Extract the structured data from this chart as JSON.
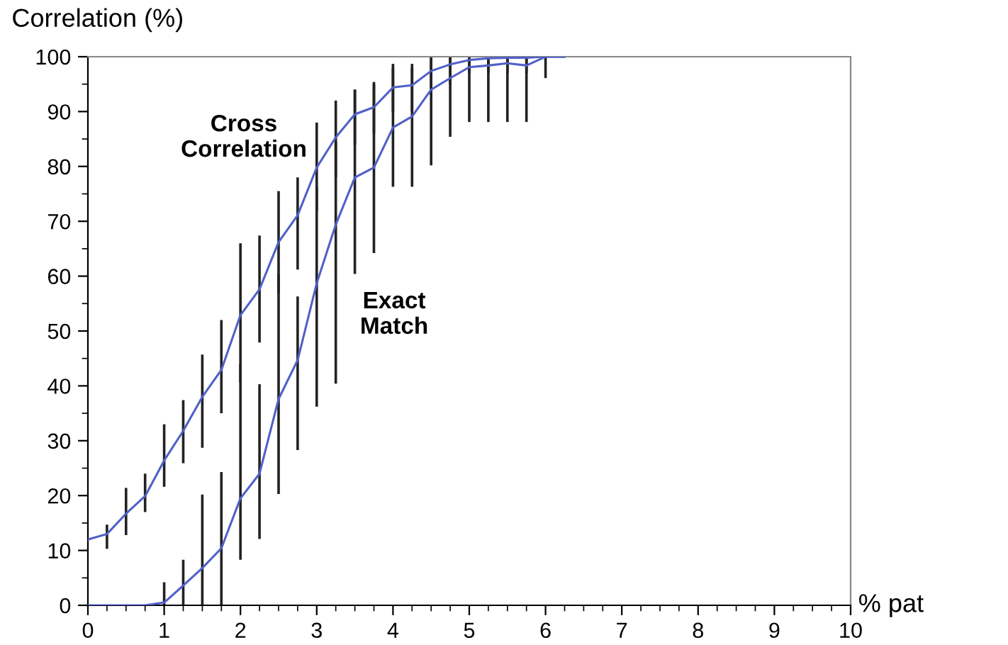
{
  "chart_data": {
    "type": "line",
    "xlabel": "% pat",
    "ylabel": "Correlation (%)",
    "xlim": [
      0,
      10
    ],
    "xticks": [
      0,
      1,
      2,
      3,
      4,
      5,
      6,
      7,
      8,
      9,
      10
    ],
    "ylim": [
      0,
      100
    ],
    "yticks": [
      0,
      10,
      20,
      30,
      40,
      50,
      60,
      70,
      80,
      90,
      100
    ],
    "grid": false,
    "marker": "none",
    "line_style": "solid",
    "series": [
      {
        "name": "Cross\nCorrelation",
        "color": "#5060c8",
        "x": [
          0,
          0.25,
          0.5,
          0.75,
          1,
          1.25,
          1.5,
          1.75,
          2,
          2.25,
          2.5,
          2.75,
          3,
          3.25,
          3.5,
          3.75,
          4,
          4.25,
          4.5,
          4.75,
          5,
          5.25,
          5.5,
          5.75,
          6,
          6.25
        ],
        "values": [
          12,
          13,
          16.7,
          19.9,
          26.4,
          31.8,
          38,
          42.9,
          52.9,
          57.6,
          66.2,
          71.1,
          79.8,
          85.3,
          89.5,
          90.8,
          94.4,
          94.8,
          97.4,
          98.6,
          99.4,
          99.7,
          99.8,
          99.8,
          100,
          100
        ],
        "errors": [
          null,
          [
            10.3,
            14.7
          ],
          [
            12.8,
            21.4
          ],
          [
            17,
            24
          ],
          [
            21.6,
            33
          ],
          [
            25.9,
            37.4
          ],
          [
            28.7,
            45.7
          ],
          [
            35,
            52
          ],
          [
            40.6,
            66
          ],
          [
            47.9,
            67.4
          ],
          [
            56.9,
            75.5
          ],
          [
            61.2,
            78
          ],
          [
            72,
            88
          ],
          [
            78,
            92
          ],
          [
            84,
            94
          ],
          [
            86,
            95.4
          ],
          [
            90,
            98.7
          ],
          [
            90,
            98.7
          ],
          [
            93,
            100
          ],
          [
            95,
            100
          ],
          [
            97,
            100
          ],
          [
            97,
            100
          ],
          [
            97,
            100
          ],
          [
            97,
            100
          ],
          [
            100,
            100
          ],
          null
        ]
      },
      {
        "name": "Exact\nMatch",
        "color": "#5060c8",
        "x": [
          0,
          0.25,
          0.5,
          0.75,
          1,
          1.25,
          1.5,
          1.75,
          2,
          2.25,
          2.5,
          2.75,
          3,
          3.25,
          3.5,
          3.75,
          4,
          4.25,
          4.5,
          4.75,
          5,
          5.25,
          5.5,
          5.75,
          6,
          6.25
        ],
        "values": [
          0,
          0,
          0,
          0,
          0.5,
          3.6,
          6.8,
          10.4,
          19.5,
          24,
          37.6,
          44.7,
          58.7,
          69.4,
          78,
          79.8,
          87.1,
          89.1,
          94,
          96.1,
          98.1,
          98.4,
          98.8,
          98.4,
          100,
          100
        ],
        "errors": [
          null,
          null,
          null,
          null,
          [
            0,
            4.2
          ],
          [
            0,
            8.3
          ],
          [
            0,
            20.2
          ],
          [
            0,
            24.3
          ],
          [
            8.3,
            44
          ],
          [
            12.1,
            40.3
          ],
          [
            20.3,
            60.4
          ],
          [
            28.3,
            56.3
          ],
          [
            36.2,
            76.3
          ],
          [
            40.4,
            84.5
          ],
          [
            60.4,
            94
          ],
          [
            64.2,
            95
          ],
          [
            76.3,
            98
          ],
          [
            76.3,
            98
          ],
          [
            80.2,
            100
          ],
          [
            85.4,
            100
          ],
          [
            88.1,
            100
          ],
          [
            88.1,
            100
          ],
          [
            88.1,
            100
          ],
          [
            88.1,
            100
          ],
          [
            96.1,
            100
          ],
          null
        ]
      }
    ]
  }
}
